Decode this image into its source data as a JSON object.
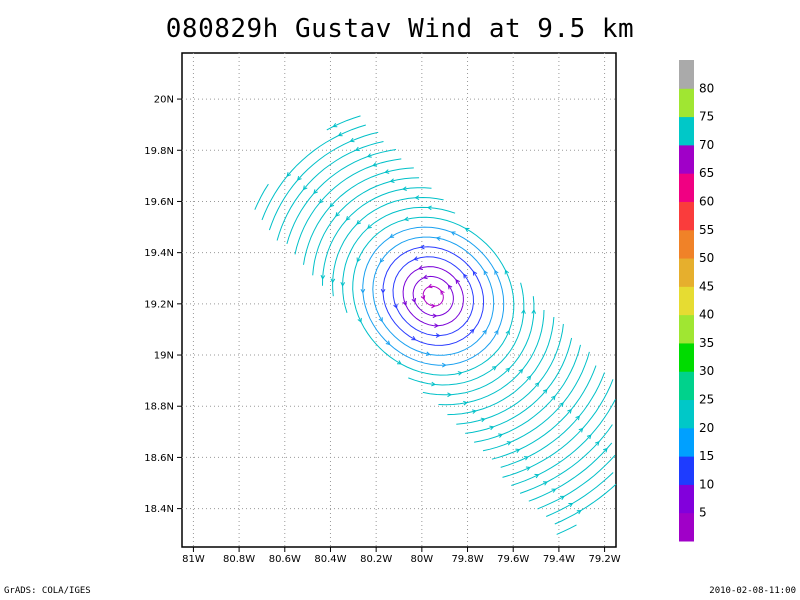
{
  "title": "080829h Gustav Wind at 9.5 km",
  "footer": {
    "left": "GrADS: COLA/IGES",
    "right": "2010-02-08-11:00"
  },
  "chart_data": {
    "type": "streamline",
    "title": "080829h Gustav Wind at 9.5 km",
    "xlim": [
      -81.05,
      -79.15
    ],
    "ylim": [
      18.25,
      20.18
    ],
    "x_ticks": [
      {
        "v": -81.0,
        "label": "81W"
      },
      {
        "v": -80.8,
        "label": "80.8W"
      },
      {
        "v": -80.6,
        "label": "80.6W"
      },
      {
        "v": -80.4,
        "label": "80.4W"
      },
      {
        "v": -80.2,
        "label": "80.2W"
      },
      {
        "v": -80.0,
        "label": "80W"
      },
      {
        "v": -79.8,
        "label": "79.8W"
      },
      {
        "v": -79.6,
        "label": "79.6W"
      },
      {
        "v": -79.4,
        "label": "79.4W"
      },
      {
        "v": -79.2,
        "label": "79.2W"
      }
    ],
    "y_ticks": [
      {
        "v": 18.4,
        "label": "18.4N"
      },
      {
        "v": 18.6,
        "label": "18.6N"
      },
      {
        "v": 18.8,
        "label": "18.8N"
      },
      {
        "v": 19.0,
        "label": "19N"
      },
      {
        "v": 19.2,
        "label": "19.2N"
      },
      {
        "v": 19.4,
        "label": "19.4N"
      },
      {
        "v": 19.6,
        "label": "19.6N"
      },
      {
        "v": 19.8,
        "label": "19.8N"
      },
      {
        "v": 20.0,
        "label": "20N"
      }
    ],
    "grid": true,
    "center": {
      "lon": -79.95,
      "lat": 19.23
    },
    "colorbar": {
      "position": "right",
      "colors": [
        "#a000c8",
        "#8200dc",
        "#1e3cff",
        "#00a0ff",
        "#00c8c8",
        "#00d28c",
        "#00dc00",
        "#a0e632",
        "#e6dc32",
        "#e6af2d",
        "#f08228",
        "#fa3c3c",
        "#f00082",
        "#a000c8",
        "#00c8c8",
        "#a0e632",
        "#aaaaaa"
      ],
      "labels": [
        "5",
        "10",
        "15",
        "20",
        "25",
        "30",
        "35",
        "40",
        "45",
        "50",
        "55",
        "60",
        "65",
        "70",
        "75",
        "80"
      ]
    }
  }
}
